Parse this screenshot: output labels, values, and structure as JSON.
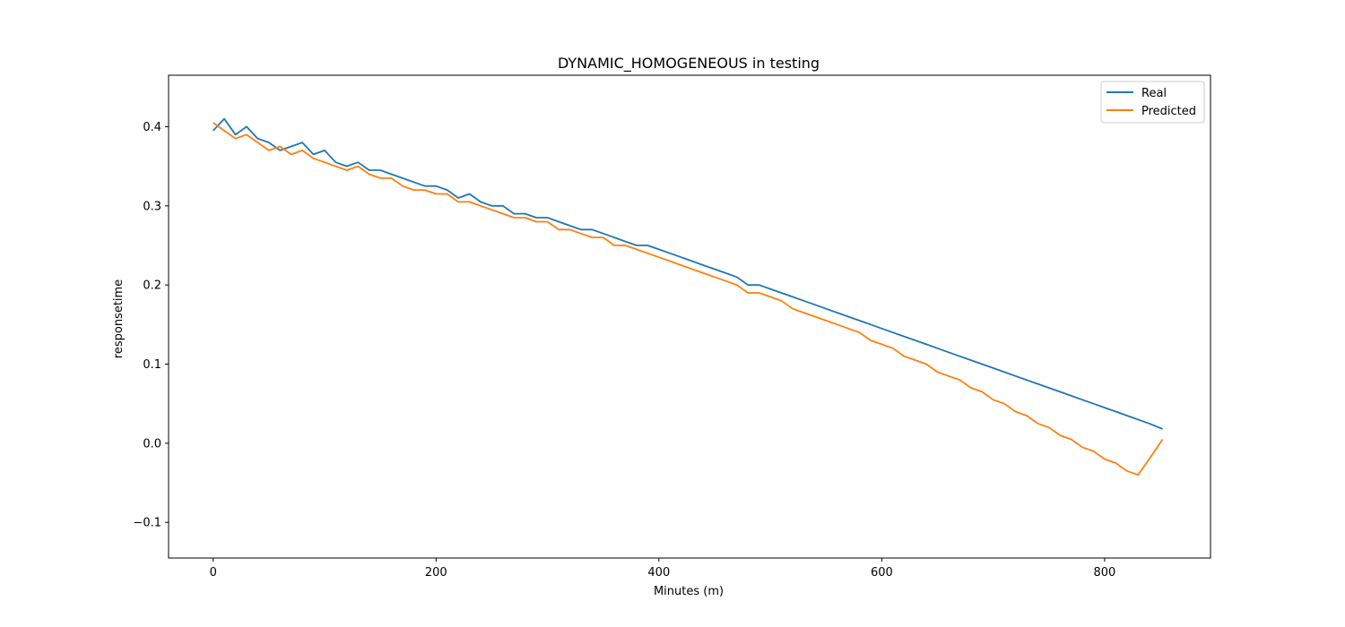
{
  "chart_data": {
    "type": "line",
    "title": "DYNAMIC_HOMOGENEOUS in testing",
    "xlabel": "Minutes (m)",
    "ylabel": "responsetime",
    "xlim": [
      -40,
      895
    ],
    "ylim": [
      -0.145,
      0.465
    ],
    "xticks": [
      0,
      200,
      400,
      600,
      800
    ],
    "xtick_labels": [
      "0",
      "200",
      "400",
      "600",
      "800"
    ],
    "yticks": [
      -0.1,
      0.0,
      0.1,
      0.2,
      0.3,
      0.4
    ],
    "ytick_labels": [
      "−0.1",
      "0.0",
      "0.1",
      "0.2",
      "0.3",
      "0.4"
    ],
    "grid": false,
    "legend_position": "top-right",
    "series": [
      {
        "name": "Real",
        "color": "#1f77b4",
        "x": [
          0,
          10,
          20,
          30,
          40,
          50,
          60,
          70,
          80,
          90,
          100,
          110,
          120,
          130,
          140,
          150,
          160,
          170,
          180,
          190,
          200,
          210,
          220,
          230,
          240,
          250,
          260,
          270,
          280,
          290,
          300,
          310,
          320,
          330,
          340,
          350,
          360,
          370,
          380,
          390,
          400,
          410,
          420,
          430,
          440,
          450,
          460,
          470,
          480,
          490,
          500,
          510,
          520,
          530,
          540,
          550,
          560,
          570,
          580,
          590,
          600,
          610,
          620,
          630,
          640,
          650,
          660,
          670,
          680,
          690,
          700,
          710,
          720,
          730,
          740,
          750,
          760,
          770,
          780,
          790,
          800,
          810,
          820,
          830,
          840,
          852
        ],
        "y": [
          0.395,
          0.41,
          0.39,
          0.4,
          0.385,
          0.38,
          0.37,
          0.375,
          0.38,
          0.365,
          0.37,
          0.355,
          0.35,
          0.355,
          0.345,
          0.345,
          0.34,
          0.335,
          0.33,
          0.325,
          0.325,
          0.32,
          0.31,
          0.315,
          0.305,
          0.3,
          0.3,
          0.29,
          0.29,
          0.285,
          0.285,
          0.28,
          0.275,
          0.27,
          0.27,
          0.265,
          0.26,
          0.255,
          0.25,
          0.25,
          0.245,
          0.24,
          0.235,
          0.23,
          0.225,
          0.22,
          0.215,
          0.21,
          0.2,
          0.2,
          0.195,
          0.19,
          0.185,
          0.18,
          0.175,
          0.17,
          0.165,
          0.16,
          0.155,
          0.15,
          0.145,
          0.14,
          0.135,
          0.13,
          0.125,
          0.12,
          0.115,
          0.11,
          0.105,
          0.1,
          0.095,
          0.09,
          0.085,
          0.08,
          0.075,
          0.07,
          0.065,
          0.06,
          0.055,
          0.05,
          0.045,
          0.04,
          0.035,
          0.03,
          0.025,
          0.018
        ]
      },
      {
        "name": "Predicted",
        "color": "#ff7f0e",
        "x": [
          0,
          10,
          20,
          30,
          40,
          50,
          60,
          70,
          80,
          90,
          100,
          110,
          120,
          130,
          140,
          150,
          160,
          170,
          180,
          190,
          200,
          210,
          220,
          230,
          240,
          250,
          260,
          270,
          280,
          290,
          300,
          310,
          320,
          330,
          340,
          350,
          360,
          370,
          380,
          390,
          400,
          410,
          420,
          430,
          440,
          450,
          460,
          470,
          480,
          490,
          500,
          510,
          520,
          530,
          540,
          550,
          560,
          570,
          580,
          590,
          600,
          610,
          620,
          630,
          640,
          650,
          660,
          670,
          680,
          690,
          700,
          710,
          720,
          730,
          740,
          750,
          760,
          770,
          780,
          790,
          800,
          810,
          820,
          830,
          840,
          852
        ],
        "y": [
          0.405,
          0.395,
          0.385,
          0.39,
          0.38,
          0.37,
          0.375,
          0.365,
          0.37,
          0.36,
          0.355,
          0.35,
          0.345,
          0.35,
          0.34,
          0.335,
          0.335,
          0.325,
          0.32,
          0.32,
          0.315,
          0.315,
          0.305,
          0.305,
          0.3,
          0.295,
          0.29,
          0.285,
          0.285,
          0.28,
          0.28,
          0.27,
          0.27,
          0.265,
          0.26,
          0.26,
          0.25,
          0.25,
          0.245,
          0.24,
          0.235,
          0.23,
          0.225,
          0.22,
          0.215,
          0.21,
          0.205,
          0.2,
          0.19,
          0.19,
          0.185,
          0.18,
          0.17,
          0.165,
          0.16,
          0.155,
          0.15,
          0.145,
          0.14,
          0.13,
          0.125,
          0.12,
          0.11,
          0.105,
          0.1,
          0.09,
          0.085,
          0.08,
          0.07,
          0.065,
          0.055,
          0.05,
          0.04,
          0.035,
          0.025,
          0.02,
          0.01,
          0.005,
          -0.005,
          -0.01,
          -0.02,
          -0.025,
          -0.035,
          -0.04,
          -0.02,
          0.005
        ]
      }
    ]
  }
}
